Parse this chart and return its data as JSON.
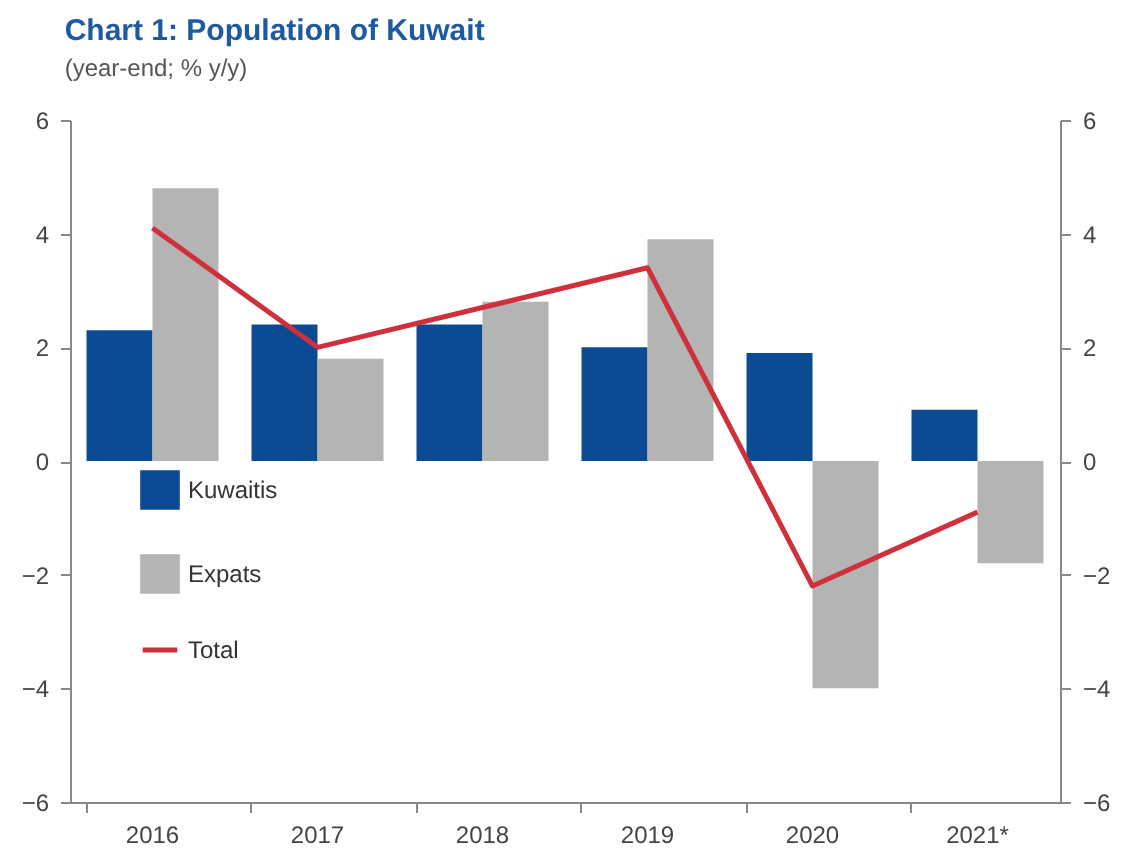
{
  "chart_data": {
    "type": "bar",
    "title": "Chart 1: Population of Kuwait",
    "subtitle": "(year-end; % y/y)",
    "categories": [
      "2016",
      "2017",
      "2018",
      "2019",
      "2020",
      "2021*"
    ],
    "series": [
      {
        "name": "Kuwaitis",
        "color": "#0d4a94",
        "values": [
          2.3,
          2.4,
          2.4,
          2.0,
          1.9,
          0.9
        ]
      },
      {
        "name": "Expats",
        "color": "#b4b4b4",
        "values": [
          4.8,
          1.8,
          2.8,
          3.9,
          -4.0,
          -1.8
        ]
      },
      {
        "name": "Total",
        "type": "line",
        "color": "#d0303c",
        "values": [
          4.1,
          2.0,
          2.7,
          3.4,
          -2.2,
          -0.9
        ]
      }
    ],
    "ylim": [
      -6,
      6
    ],
    "yticks": [
      -6,
      -4,
      -2,
      0,
      2,
      4,
      6
    ],
    "y2lim": [
      -6,
      6
    ],
    "y2ticks": [
      -6,
      -4,
      -2,
      0,
      2,
      4,
      6
    ],
    "grid": false,
    "legend": "left"
  }
}
